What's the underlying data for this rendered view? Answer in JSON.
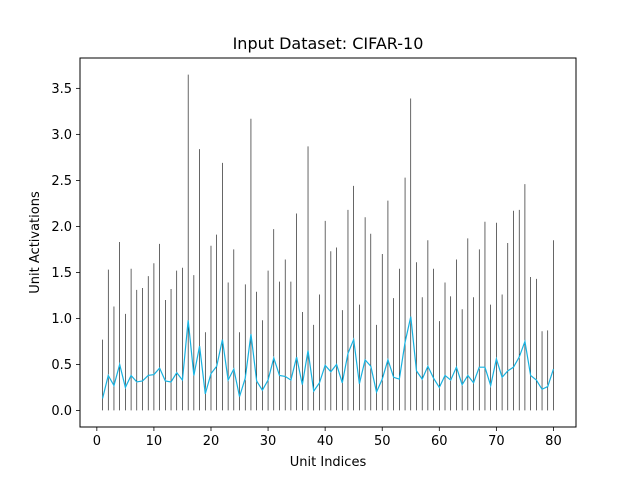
{
  "chart_data": {
    "type": "line",
    "title": "Input Dataset: CIFAR-10",
    "xlabel": "Unit Indices",
    "ylabel": "Unit Activations",
    "xlim": [
      -2.95,
      83.95
    ],
    "ylim": [
      -0.18,
      3.83
    ],
    "xticks": [
      0,
      10,
      20,
      30,
      40,
      50,
      60,
      70,
      80
    ],
    "yticks": [
      0.0,
      0.5,
      1.0,
      1.5,
      2.0,
      2.5,
      3.0,
      3.5
    ],
    "xtick_labels": [
      "0",
      "10",
      "20",
      "30",
      "40",
      "50",
      "60",
      "70",
      "80"
    ],
    "ytick_labels": [
      "0.0",
      "0.5",
      "1.0",
      "1.5",
      "2.0",
      "2.5",
      "3.0",
      "3.5"
    ],
    "grid": false,
    "series": [
      {
        "kind": "vertical-lines",
        "color": "#000000",
        "x": [
          1,
          2,
          3,
          4,
          5,
          6,
          7,
          8,
          9,
          10,
          11,
          12,
          13,
          14,
          15,
          16,
          17,
          18,
          19,
          20,
          21,
          22,
          23,
          24,
          25,
          26,
          27,
          28,
          29,
          30,
          31,
          32,
          33,
          34,
          35,
          36,
          37,
          38,
          39,
          40,
          41,
          42,
          43,
          44,
          45,
          46,
          47,
          48,
          49,
          50,
          51,
          52,
          53,
          54,
          55,
          56,
          57,
          58,
          59,
          60,
          61,
          62,
          63,
          64,
          65,
          66,
          67,
          68,
          69,
          70,
          71,
          72,
          73,
          74,
          75,
          76,
          77,
          78,
          79,
          80
        ],
        "values": [
          0.77,
          1.53,
          1.13,
          1.83,
          1.05,
          1.54,
          1.31,
          1.33,
          1.46,
          1.6,
          1.81,
          1.2,
          1.32,
          1.52,
          1.55,
          3.65,
          1.47,
          2.84,
          0.85,
          1.79,
          1.91,
          2.69,
          1.39,
          1.75,
          0.85,
          1.37,
          3.17,
          1.29,
          0.98,
          1.52,
          1.97,
          1.4,
          1.64,
          1.4,
          2.14,
          1.07,
          2.87,
          0.93,
          1.26,
          2.06,
          1.73,
          1.77,
          1.09,
          2.18,
          2.44,
          1.15,
          2.1,
          1.92,
          0.93,
          1.7,
          2.28,
          1.22,
          1.54,
          2.53,
          3.39,
          1.61,
          1.23,
          1.85,
          1.54,
          0.97,
          1.39,
          1.24,
          1.64,
          1.1,
          1.87,
          1.23,
          1.75,
          2.05,
          1.15,
          2.04,
          1.26,
          1.82,
          2.17,
          2.18,
          2.46,
          1.45,
          1.43,
          0.86,
          0.87,
          1.85
        ]
      },
      {
        "kind": "line",
        "color": "#17b2e0",
        "x": [
          1,
          2,
          3,
          4,
          5,
          6,
          7,
          8,
          9,
          10,
          11,
          12,
          13,
          14,
          15,
          16,
          17,
          18,
          19,
          20,
          21,
          22,
          23,
          24,
          25,
          26,
          27,
          28,
          29,
          30,
          31,
          32,
          33,
          34,
          35,
          36,
          37,
          38,
          39,
          40,
          41,
          42,
          43,
          44,
          45,
          46,
          47,
          48,
          49,
          50,
          51,
          52,
          53,
          54,
          55,
          56,
          57,
          58,
          59,
          60,
          61,
          62,
          63,
          64,
          65,
          66,
          67,
          68,
          69,
          70,
          71,
          72,
          73,
          74,
          75,
          76,
          77,
          78,
          79,
          80
        ],
        "values": [
          0.13,
          0.38,
          0.27,
          0.5,
          0.25,
          0.38,
          0.31,
          0.32,
          0.38,
          0.39,
          0.46,
          0.32,
          0.31,
          0.41,
          0.33,
          0.98,
          0.38,
          0.7,
          0.18,
          0.4,
          0.48,
          0.77,
          0.33,
          0.45,
          0.15,
          0.35,
          0.83,
          0.32,
          0.22,
          0.33,
          0.57,
          0.38,
          0.37,
          0.33,
          0.58,
          0.28,
          0.65,
          0.21,
          0.3,
          0.49,
          0.42,
          0.5,
          0.3,
          0.62,
          0.77,
          0.29,
          0.55,
          0.48,
          0.2,
          0.34,
          0.55,
          0.36,
          0.34,
          0.74,
          1.02,
          0.43,
          0.34,
          0.48,
          0.35,
          0.25,
          0.38,
          0.33,
          0.47,
          0.28,
          0.38,
          0.3,
          0.47,
          0.47,
          0.27,
          0.56,
          0.36,
          0.43,
          0.47,
          0.58,
          0.75,
          0.38,
          0.33,
          0.23,
          0.26,
          0.45
        ]
      }
    ]
  }
}
